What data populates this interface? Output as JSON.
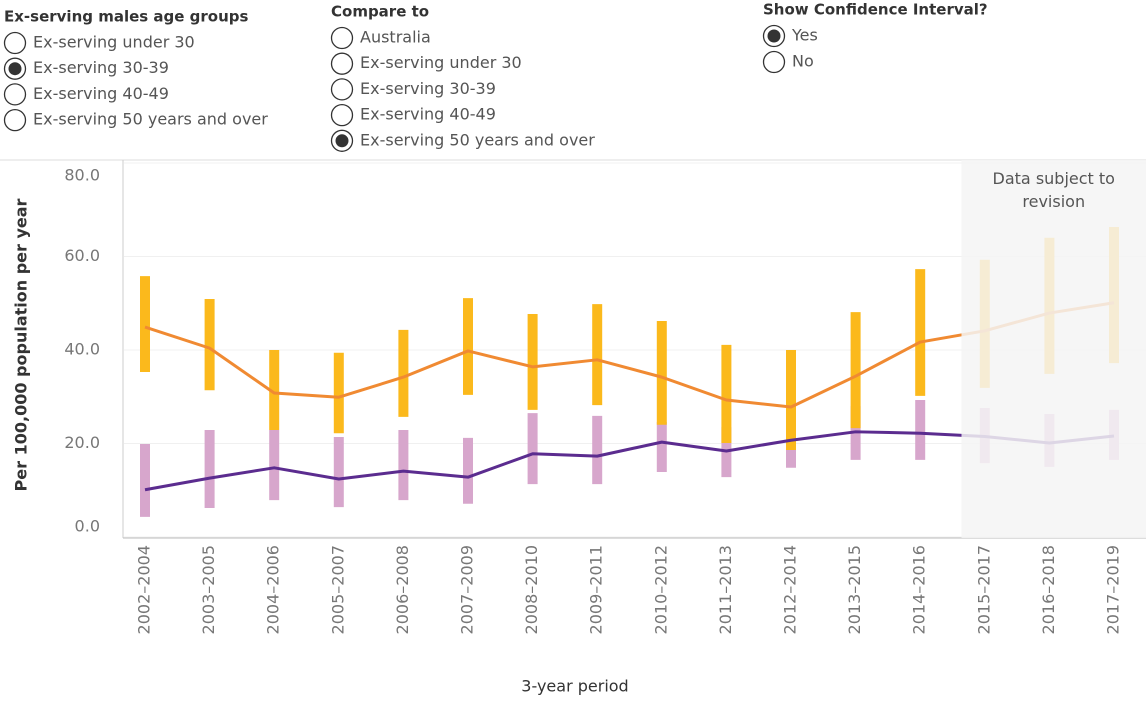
{
  "controls": [
    {
      "title": "Ex-serving males age groups",
      "options": [
        "Ex-serving under 30",
        "Ex-serving 30-39",
        "Ex-serving 40-49",
        "Ex-serving 50 years and over"
      ],
      "selected": 1
    },
    {
      "title": "Compare to",
      "options": [
        "Australia",
        "Ex-serving under 30",
        "Ex-serving 30-39",
        "Ex-serving 40-49",
        "Ex-serving 50 years and over"
      ],
      "selected": 4
    },
    {
      "title": "Show Confidence Interval?",
      "options": [
        "Yes",
        "No"
      ],
      "selected": 0
    }
  ],
  "chart_data": {
    "type": "line",
    "y_label": "Per 100,000 population per year",
    "x_label": "3-year period",
    "categories": [
      "2002–2004",
      "2003–2005",
      "2004–2006",
      "2005–2007",
      "2006–2008",
      "2007–2009",
      "2008–2010",
      "2009–2011",
      "2010–2012",
      "2011–2013",
      "2012–2014",
      "2013–2015",
      "2014–2016",
      "2015–2017",
      "2016–2018",
      "2017–2019"
    ],
    "series": [
      {
        "color": "#5b2c8f",
        "ci_color": "#d7a6cc",
        "values": [
          10.1,
          12.6,
          14.8,
          12.4,
          14.1,
          12.8,
          17.8,
          17.3,
          20.3,
          18.4,
          20.7,
          22.5,
          22.2,
          21.5,
          20.1,
          21.6
        ],
        "ci_high": [
          19.9,
          22.9,
          22.9,
          21.4,
          22.9,
          21.2,
          26.5,
          25.9,
          24.6,
          23.5,
          25.0,
          28.0,
          29.3,
          27.6,
          26.3,
          27.2
        ],
        "ci_low": [
          4.3,
          6.2,
          7.9,
          6.4,
          7.9,
          7.1,
          11.3,
          11.3,
          13.9,
          12.8,
          14.8,
          16.5,
          16.5,
          15.8,
          15.0,
          16.5
        ]
      },
      {
        "color": "#f08a32",
        "ci_color": "#fbb91c",
        "values": [
          44.9,
          40.4,
          30.8,
          29.9,
          34.2,
          39.8,
          36.4,
          37.9,
          34.2,
          29.3,
          27.8,
          34.4,
          41.7,
          44.1,
          47.9,
          50.1
        ],
        "ci_high": [
          55.8,
          50.9,
          40.0,
          39.4,
          44.3,
          51.1,
          47.7,
          49.8,
          46.2,
          41.1,
          40.0,
          48.1,
          57.3,
          59.3,
          64.0,
          66.3
        ],
        "ci_low": [
          35.3,
          31.4,
          22.9,
          22.2,
          25.7,
          30.4,
          27.2,
          28.2,
          24.0,
          20.1,
          18.6,
          23.3,
          30.2,
          31.9,
          34.9,
          37.2
        ]
      }
    ],
    "ylim": [
      0,
      80
    ],
    "yticks": [
      {
        "value": 0,
        "label": "0.0"
      },
      {
        "value": 20,
        "label": "20.0"
      },
      {
        "value": 40,
        "label": "40.0"
      },
      {
        "value": 60,
        "label": "60.0"
      },
      {
        "value": 80,
        "label": "80.0"
      }
    ],
    "grid": true,
    "shaded_region": {
      "label": "Data subject to revision",
      "from": "2015–2017",
      "to": "2017–2019"
    }
  }
}
